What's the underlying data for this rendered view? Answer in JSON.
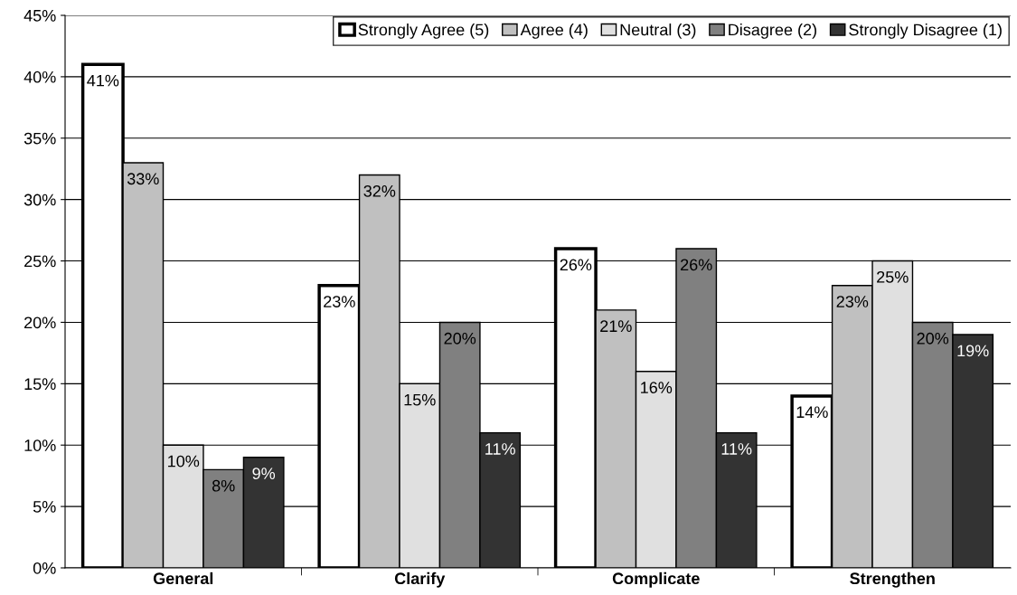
{
  "chart_data": {
    "type": "bar",
    "categories": [
      "General",
      "Clarify",
      "Complicate",
      "Strengthen"
    ],
    "series": [
      {
        "name": "Strongly Agree (5)",
        "color": "#ffffff",
        "values": [
          41,
          23,
          26,
          14
        ],
        "value_labels": [
          "41%",
          "23%",
          "26%",
          "14%"
        ]
      },
      {
        "name": "Agree (4)",
        "color": "#c0c0c0",
        "values": [
          33,
          32,
          21,
          23
        ],
        "value_labels": [
          "33%",
          "32%",
          "21%",
          "23%"
        ]
      },
      {
        "name": "Neutral (3)",
        "color": "#e0e0e0",
        "values": [
          10,
          15,
          16,
          25
        ],
        "value_labels": [
          "10%",
          "15%",
          "16%",
          "25%"
        ]
      },
      {
        "name": "Disagree (2)",
        "color": "#808080",
        "values": [
          8,
          20,
          26,
          20
        ],
        "value_labels": [
          "8%",
          "20%",
          "26%",
          "20%"
        ]
      },
      {
        "name": "Strongly Disagree (1)",
        "color": "#333333",
        "values": [
          9,
          11,
          11,
          19
        ],
        "value_labels": [
          "9%",
          "11%",
          "11%",
          "19%"
        ]
      }
    ],
    "ylim": [
      0,
      45
    ],
    "yticks": [
      {
        "value": 0,
        "label": "0%"
      },
      {
        "value": 5,
        "label": "5%"
      },
      {
        "value": 10,
        "label": "10%"
      },
      {
        "value": 15,
        "label": "15%"
      },
      {
        "value": 20,
        "label": "20%"
      },
      {
        "value": 25,
        "label": "25%"
      },
      {
        "value": 30,
        "label": "30%"
      },
      {
        "value": 35,
        "label": "35%"
      },
      {
        "value": 40,
        "label": "40%"
      },
      {
        "value": 45,
        "label": "45%"
      }
    ],
    "grid": "y",
    "legend": "top right"
  }
}
